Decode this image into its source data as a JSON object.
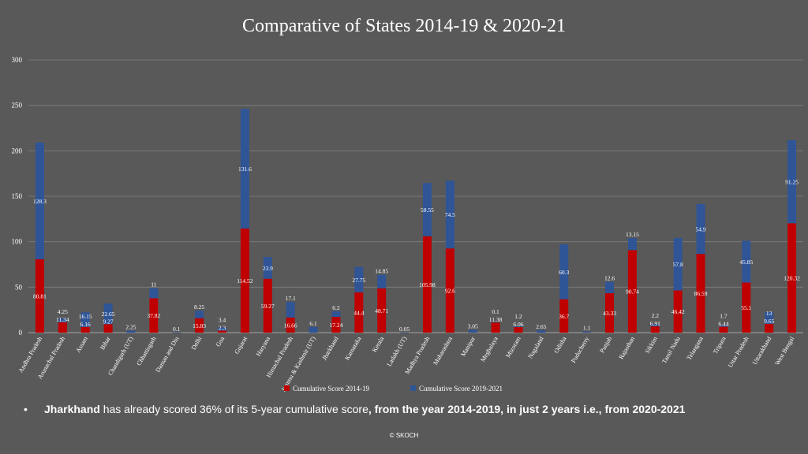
{
  "title": "Comparative of States 2014-19 & 2020-21",
  "note": {
    "bullet": "•",
    "state": "Jharkhand",
    "part1": " has already scored 36% of its 5-year cumulative score",
    "part2": ", from the year 2014-2019,  in just 2 years i.e., from 2020-2021"
  },
  "credit": "© SKOCH",
  "colors": {
    "background": "#595959",
    "grid": "#7f7f7f",
    "series_2014_19": "#c00000",
    "series_2019_21": "#2f5597"
  },
  "chart_data": {
    "type": "bar",
    "stacked": true,
    "title": "Comparative of States 2014-19 & 2020-21",
    "ylim": [
      0,
      300
    ],
    "yticks": [
      0,
      50,
      100,
      150,
      200,
      250,
      300
    ],
    "grid": true,
    "legend_position": "bottom",
    "categories": [
      "Andhra Pradesh",
      "Arunachal Pradesh",
      "Assam",
      "Bihar",
      "Chandigarh (UT)",
      "Chhattisgarh",
      "Daman and Diu",
      "Delhi",
      "Goa",
      "Gujarat",
      "Haryana",
      "Himachal Pradesh",
      "Jammu & Kashmir (UT)",
      "Jharkhand",
      "Karnataka",
      "Kerala",
      "Ladakh (UT)",
      "Madhya Pradesh",
      "Maharashtra",
      "Manipur",
      "Meghalaya",
      "Mizoram",
      "Nagaland",
      "Odisha",
      "Puducherry",
      "Punjab",
      "Rajasthan",
      "Sikkim",
      "Tamil Nadu",
      "Telangana",
      "Tripura",
      "Uttar Pradesh",
      "Uttarakhand",
      "West Bengal"
    ],
    "series": [
      {
        "name": "Cumulative Score 2014-19",
        "color": "#c00000",
        "values": [
          80.81,
          11.34,
          6.16,
          9.27,
          null,
          37.82,
          null,
          15.83,
          2.3,
          114.52,
          59.27,
          16.66,
          null,
          17.24,
          44.4,
          48.71,
          null,
          105.98,
          92.6,
          null,
          11.38,
          6.06,
          null,
          36.7,
          null,
          43.33,
          90.74,
          6.91,
          46.42,
          86.59,
          6.44,
          55.1,
          9.65,
          120.32
        ],
        "labels": [
          "80.81",
          "11.34",
          "6.16",
          "9.27",
          "",
          "37.82",
          "",
          "15.83",
          "2.3",
          "114.52",
          "59.27",
          "16.66",
          "",
          "17.24",
          "44.4",
          "48.71",
          "",
          "105.98",
          "92.6",
          "",
          "11.38",
          "6.06",
          "",
          "36.7",
          "",
          "43.33",
          "90.74",
          "6.91",
          "46.42",
          "86.59",
          "6.44",
          "55.1",
          "9.65",
          "120.32"
        ]
      },
      {
        "name": "Cumulative Score 2019-2021",
        "color": "#2f5597",
        "values": [
          128.3,
          4.25,
          16.15,
          22.65,
          2.25,
          11,
          0.1,
          8.25,
          3.4,
          131.6,
          23.9,
          17.1,
          6.1,
          6.2,
          27.75,
          14.85,
          0.05,
          58.55,
          74.5,
          3.05,
          0.1,
          1.2,
          2.65,
          60.3,
          1.1,
          12.6,
          13.15,
          2.2,
          57.8,
          54.9,
          1.7,
          45.85,
          13,
          91.25
        ],
        "labels": [
          "128.3",
          "4.25",
          "16.15",
          "22.65",
          "2.25",
          "11",
          "0.1",
          "8.25",
          "3.4",
          "131.6",
          "23.9",
          "17.1",
          "6.1",
          "6.2",
          "27.75",
          "14.85",
          "0.05",
          "58.55",
          "74.5",
          "3.05",
          "0.1",
          "1.2",
          "2.65",
          "60.3",
          "1.1",
          "12.6",
          "13.15",
          "2.2",
          "57.8",
          "54.9",
          "1.7",
          "45.85",
          "13",
          "91.25"
        ]
      }
    ]
  }
}
